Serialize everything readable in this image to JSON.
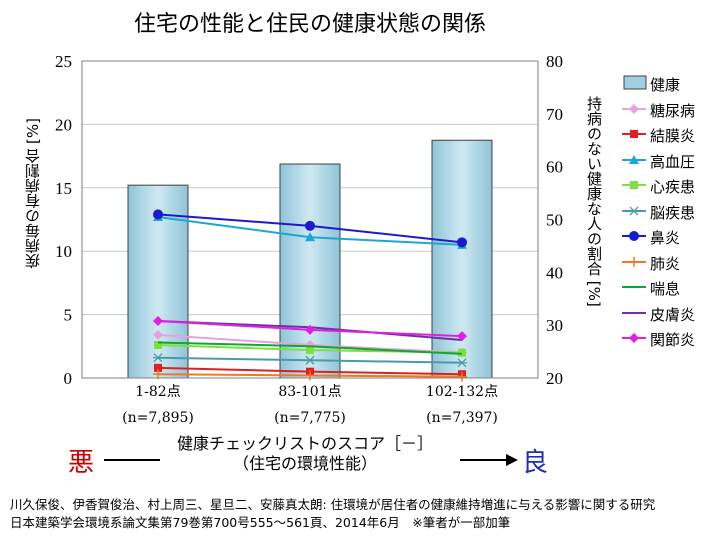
{
  "chart_data": {
    "type": "bar+line",
    "title": "住宅の性能と住民の健康状態の関係",
    "categories": [
      "1-82点",
      "83-101点",
      "102-132点"
    ],
    "category_notes": [
      "(n=7,895)",
      "(n=7,775)",
      "(n=7,397)"
    ],
    "y_left": {
      "label": "疾病毎の有病割合 [%]",
      "range": [
        0,
        25
      ],
      "ticks": [
        "0",
        "5",
        "10",
        "15",
        "20",
        "25"
      ]
    },
    "y_right": {
      "label": "持病のない健康な人の割合 [%]",
      "range": [
        20,
        80
      ],
      "ticks": [
        "20",
        "30",
        "40",
        "50",
        "60",
        "70",
        "80"
      ]
    },
    "bar_series": {
      "name": "健康",
      "axis": "right",
      "values": [
        56.5,
        60.5,
        65.0
      ],
      "color": "#9fcfe0"
    },
    "series": [
      {
        "name": "糖尿病",
        "values": [
          3.4,
          2.6,
          2.0
        ],
        "color": "#e8a0e0",
        "marker": "diamond"
      },
      {
        "name": "結膜炎",
        "values": [
          0.8,
          0.5,
          0.3
        ],
        "color": "#e02020",
        "marker": "square"
      },
      {
        "name": "高血圧",
        "values": [
          12.7,
          11.1,
          10.5
        ],
        "color": "#1aa7d6",
        "marker": "triangle"
      },
      {
        "name": "心疾患",
        "values": [
          2.6,
          2.2,
          2.0
        ],
        "color": "#7de040",
        "marker": "square"
      },
      {
        "name": "脳疾患",
        "values": [
          1.6,
          1.4,
          1.2
        ],
        "color": "#4a9aa8",
        "marker": "asterisk"
      },
      {
        "name": "鼻炎",
        "values": [
          12.9,
          12.0,
          10.7
        ],
        "color": "#1a1ad0",
        "marker": "circle"
      },
      {
        "name": "肺炎",
        "values": [
          0.3,
          0.2,
          0.1
        ],
        "color": "#f07820",
        "marker": "plus"
      },
      {
        "name": "喘息",
        "values": [
          2.8,
          2.5,
          1.9
        ],
        "color": "#10a830",
        "marker": "none"
      },
      {
        "name": "皮膚炎",
        "values": [
          4.5,
          4.0,
          3.0
        ],
        "color": "#7030a0",
        "marker": "none"
      },
      {
        "name": "関節炎",
        "values": [
          4.5,
          3.8,
          3.3
        ],
        "color": "#e020e0",
        "marker": "diamond"
      }
    ],
    "grid": true,
    "legend_position": "right"
  },
  "x_title": "健康チェックリストのスコア［－］",
  "x_subtitle": "（住宅の環境性能）",
  "bad_label": "悪",
  "good_label": "良",
  "source_line1": "川久保俊、伊香賀俊治、村上周三、星旦二、安藤真太朗: 住環境が居住者の健康維持増進に与える影響に関する研究",
  "source_line2": "日本建築学会環境系論文集第79巻第700号555〜561頁、2014年6月　※筆者が一部加筆"
}
